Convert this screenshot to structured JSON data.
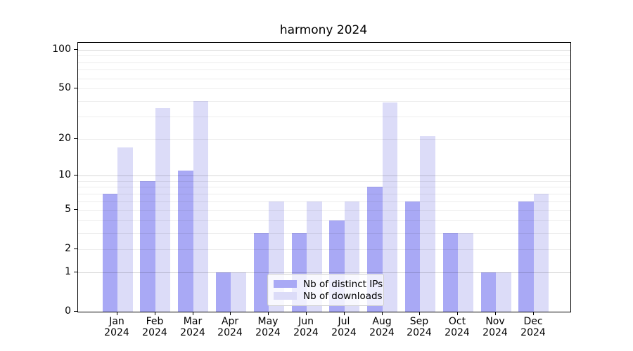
{
  "chart_data": {
    "type": "bar",
    "title": "harmony 2024",
    "categories": [
      "Jan",
      "Feb",
      "Mar",
      "Apr",
      "May",
      "Jun",
      "Jul",
      "Aug",
      "Sep",
      "Oct",
      "Nov",
      "Dec"
    ],
    "x_year_label": "2024",
    "series": [
      {
        "name": "Nb of distinct IPs",
        "color": "#a9a9f5",
        "values": [
          7,
          9,
          11,
          1,
          3,
          3,
          4,
          8,
          6,
          3,
          1,
          6
        ]
      },
      {
        "name": "Nb of downloads",
        "color": "#dcdcf8",
        "values": [
          17,
          35,
          40,
          1,
          6,
          6,
          6,
          39,
          21,
          3,
          1,
          7
        ]
      }
    ],
    "y_scale": "log1p",
    "ylim": [
      0,
      113.3
    ],
    "y_tick_values": [
      0,
      1,
      2,
      5,
      10,
      20,
      50,
      100
    ],
    "grid_major_values": [
      1,
      10,
      100
    ],
    "grid_minor_values": [
      2,
      3,
      4,
      5,
      6,
      7,
      8,
      9,
      20,
      30,
      40,
      50,
      60,
      70,
      80,
      90
    ],
    "grid": "on",
    "legend_position": "lower center"
  }
}
